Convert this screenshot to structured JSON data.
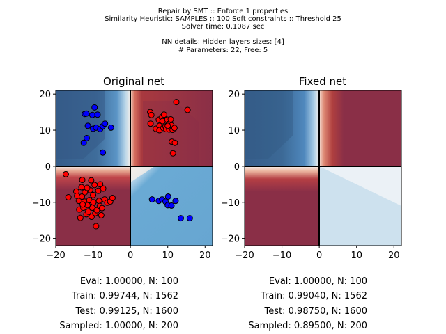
{
  "header": {
    "lines": [
      "Repair by SMT :: Enforce 1 properties",
      "Similarity Heuristic: SAMPLES :: 100 Soft constraints :: Threshold 25",
      "Solver time: 0.1087 sec",
      "",
      "NN details: Hidden layers sizes: [4]",
      "# Parameters: 22, Free: 5"
    ]
  },
  "colors": {
    "dark_blue": "#365d8a",
    "mid_blue": "#6aaad4",
    "light_blue": "#cfe3ef",
    "dark_red": "#8a2f47",
    "red_edge": "#c33d3d",
    "white": "#f7f4f1",
    "point_red": "#ff0000",
    "point_blue": "#0000ff"
  },
  "chart_data": [
    {
      "type": "scatter",
      "title": "Original net",
      "xlim": [
        -20,
        22
      ],
      "ylim": [
        -22,
        21
      ],
      "xticks": [
        -20,
        -10,
        0,
        10,
        20
      ],
      "yticks": [
        -20,
        -10,
        0,
        10,
        20
      ],
      "tick_labels_x": [
        "−20",
        "−10",
        "0",
        "10",
        "20"
      ],
      "tick_labels_y": [
        "−20",
        "−10",
        "0",
        "10",
        "20"
      ],
      "series": [
        {
          "color": "red",
          "points": [
            [
              5.3,
              15.0
            ],
            [
              5.4,
              11.8
            ],
            [
              5.6,
              14.2
            ],
            [
              6.8,
              10.4
            ],
            [
              7.6,
              12.9
            ],
            [
              7.8,
              11.2
            ],
            [
              7.8,
              10.0
            ],
            [
              8.4,
              13.6
            ],
            [
              8.6,
              12.5
            ],
            [
              8.8,
              10.6
            ],
            [
              9.0,
              14.3
            ],
            [
              9.4,
              11.0
            ],
            [
              9.6,
              10.3
            ],
            [
              9.9,
              12.9
            ],
            [
              10.2,
              11.7
            ],
            [
              10.4,
              10.2
            ],
            [
              10.8,
              13.0
            ],
            [
              11.0,
              11.3
            ],
            [
              11.1,
              6.8
            ],
            [
              11.3,
              10.1
            ],
            [
              11.4,
              3.6
            ],
            [
              11.9,
              6.5
            ],
            [
              12.3,
              17.8
            ],
            [
              15.3,
              15.6
            ],
            [
              10.0,
              11.2
            ],
            [
              11.8,
              10.6
            ],
            [
              -17.3,
              -2.2
            ],
            [
              -16.6,
              -8.6
            ],
            [
              -14.5,
              -7.0
            ],
            [
              -14.3,
              -8.2
            ],
            [
              -13.8,
              -9.6
            ],
            [
              -13.7,
              -12.0
            ],
            [
              -13.4,
              -14.3
            ],
            [
              -13.1,
              -5.8
            ],
            [
              -13.0,
              -8.4
            ],
            [
              -12.9,
              -3.8
            ],
            [
              -12.6,
              -11.5
            ],
            [
              -12.3,
              -9.8
            ],
            [
              -12.2,
              -7.2
            ],
            [
              -11.8,
              -13.3
            ],
            [
              -11.5,
              -10.8
            ],
            [
              -11.3,
              -12.6
            ],
            [
              -11.0,
              -9.4
            ],
            [
              -10.8,
              -6.6
            ],
            [
              -10.5,
              -3.9
            ],
            [
              -10.4,
              -14.0
            ],
            [
              -10.2,
              -11.5
            ],
            [
              -10.0,
              -8.0
            ],
            [
              -9.9,
              -10.0
            ],
            [
              -9.6,
              -5.2
            ],
            [
              -9.4,
              -13.0
            ],
            [
              -9.2,
              -16.6
            ],
            [
              -9.0,
              -12.2
            ],
            [
              -8.6,
              -6.8
            ],
            [
              -8.4,
              -9.6
            ],
            [
              -8.2,
              -11.0
            ],
            [
              -8.1,
              -5.0
            ],
            [
              -7.8,
              -13.6
            ],
            [
              -7.6,
              -11.6
            ],
            [
              -7.3,
              -6.2
            ],
            [
              -6.9,
              -9.2
            ],
            [
              -6.2,
              -10.1
            ],
            [
              -5.4,
              -9.8
            ],
            [
              -4.8,
              -8.8
            ],
            [
              -11.6,
              -6.0
            ],
            [
              -12.8,
              -10.6
            ]
          ]
        },
        {
          "color": "blue",
          "points": [
            [
              -12.2,
              14.5
            ],
            [
              -11.8,
              14.6
            ],
            [
              -10.2,
              14.2
            ],
            [
              -9.6,
              16.3
            ],
            [
              -8.8,
              14.3
            ],
            [
              -11.4,
              11.2
            ],
            [
              -10.0,
              10.4
            ],
            [
              -9.2,
              10.7
            ],
            [
              -8.1,
              10.3
            ],
            [
              -7.4,
              11.1
            ],
            [
              -6.8,
              11.8
            ],
            [
              -5.2,
              10.7
            ],
            [
              -11.7,
              7.8
            ],
            [
              -12.5,
              6.5
            ],
            [
              -7.4,
              3.8
            ],
            [
              5.8,
              -9.2
            ],
            [
              7.6,
              -9.6
            ],
            [
              8.5,
              -9.2
            ],
            [
              9.4,
              -9.8
            ],
            [
              10.0,
              -10.8
            ],
            [
              10.1,
              -8.4
            ],
            [
              11.0,
              -10.9
            ],
            [
              12.1,
              -9.6
            ],
            [
              13.5,
              -14.4
            ],
            [
              15.9,
              -14.4
            ]
          ]
        }
      ]
    },
    {
      "type": "scatter",
      "title": "Fixed net",
      "xlim": [
        -20,
        22
      ],
      "ylim": [
        -22,
        21
      ],
      "xticks": [
        -20,
        -10,
        0,
        10,
        20
      ],
      "yticks": [
        -20,
        -10,
        0,
        10,
        20
      ],
      "tick_labels_x": [
        "−20",
        "−10",
        "0",
        "10",
        "20"
      ],
      "tick_labels_y": [
        "−20",
        "−10",
        "0",
        "10",
        "20"
      ],
      "series": []
    }
  ],
  "stats": {
    "original": [
      "Eval: 1.00000, N: 100",
      "Train: 0.99744, N: 1562",
      "Test: 0.99125, N: 1600",
      "Sampled: 1.00000, N: 200"
    ],
    "fixed": [
      "Eval: 1.00000, N: 100",
      "Train: 0.99040, N: 1562",
      "Test: 0.98750, N: 1600",
      "Sampled: 0.89500, N: 200"
    ]
  }
}
